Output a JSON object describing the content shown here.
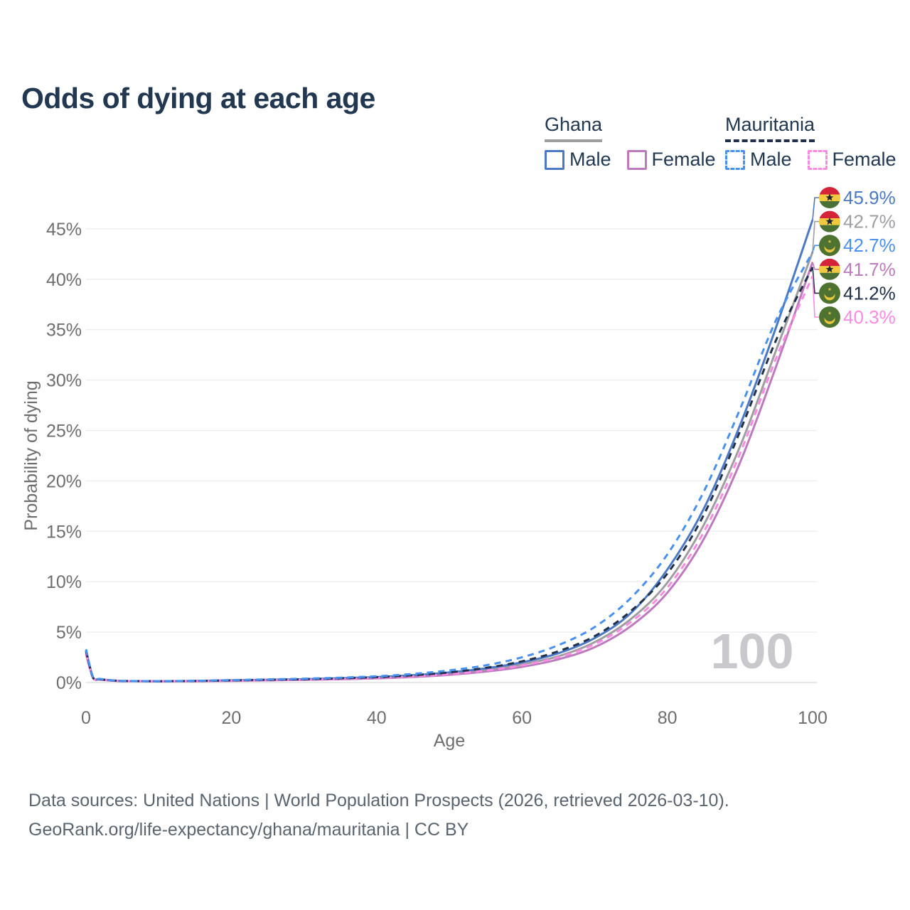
{
  "title": "Odds of dying at each age",
  "legend": {
    "groups": [
      {
        "country": "Ghana",
        "line_style": "solid",
        "underline_color": "#9e9e9e",
        "items": [
          {
            "label": "Male",
            "color": "#4c79c4",
            "dashed": false
          },
          {
            "label": "Female",
            "color": "#bd7abf",
            "dashed": false
          }
        ]
      },
      {
        "country": "Mauritania",
        "line_style": "dashed",
        "underline_color": "#22304a",
        "items": [
          {
            "label": "Male",
            "color": "#4a90ee",
            "dashed": true
          },
          {
            "label": "Female",
            "color": "#fb8ae2",
            "dashed": true
          }
        ]
      }
    ]
  },
  "chart_data": {
    "type": "line",
    "title": "Odds of dying at each age",
    "xlabel": "Age",
    "ylabel": "Probability of dying",
    "x_ticks": [
      0,
      20,
      40,
      60,
      80,
      100
    ],
    "y_tick_labels": [
      "0%",
      "5%",
      "10%",
      "15%",
      "20%",
      "25%",
      "30%",
      "35%",
      "40%",
      "45%"
    ],
    "y_ticks_percent": [
      0,
      5,
      10,
      15,
      20,
      25,
      30,
      35,
      40,
      45
    ],
    "xlim": [
      0,
      100
    ],
    "ylim_percent": [
      0,
      47
    ],
    "grid": "horizontal",
    "legend_position": "top-right",
    "watermark": "100",
    "x": [
      0,
      1,
      2,
      5,
      10,
      15,
      20,
      25,
      30,
      35,
      40,
      45,
      50,
      55,
      60,
      65,
      70,
      75,
      80,
      85,
      90,
      95,
      100
    ],
    "series": [
      {
        "name": "Ghana Male",
        "country": "Ghana",
        "sex": "Male",
        "color": "#4c79c4",
        "dash": false,
        "label_row": 0,
        "end_label": "45.9%",
        "end_value": 45.9,
        "values": [
          3.2,
          0.45,
          0.32,
          0.15,
          0.12,
          0.16,
          0.22,
          0.27,
          0.33,
          0.42,
          0.54,
          0.72,
          1.0,
          1.4,
          2.0,
          2.9,
          4.4,
          6.9,
          11.2,
          17.2,
          25.5,
          35.3,
          45.9
        ]
      },
      {
        "name": "Ghana Overall",
        "country": "Ghana",
        "sex": "All",
        "color": "#9e9ea1",
        "dash": false,
        "label_row": 1,
        "end_label": "42.7%",
        "end_value": 42.7,
        "values": [
          3.0,
          0.42,
          0.3,
          0.14,
          0.11,
          0.14,
          0.19,
          0.24,
          0.29,
          0.37,
          0.47,
          0.63,
          0.88,
          1.25,
          1.8,
          2.6,
          4.0,
          6.3,
          9.9,
          15.6,
          23.4,
          33.0,
          42.7
        ]
      },
      {
        "name": "Mauritania Male",
        "country": "Mauritania",
        "sex": "Male",
        "color": "#4a90ee",
        "dash": true,
        "label_row": 2,
        "end_label": "42.7%",
        "end_value": 42.7,
        "values": [
          3.3,
          0.48,
          0.35,
          0.16,
          0.13,
          0.17,
          0.24,
          0.31,
          0.38,
          0.48,
          0.62,
          0.85,
          1.2,
          1.7,
          2.5,
          3.7,
          5.5,
          8.4,
          12.7,
          18.9,
          27.1,
          36.0,
          42.7
        ]
      },
      {
        "name": "Ghana Female",
        "country": "Ghana",
        "sex": "Female",
        "color": "#bd7abf",
        "dash": false,
        "label_row": 3,
        "end_label": "41.7%",
        "end_value": 41.7,
        "values": [
          2.8,
          0.4,
          0.28,
          0.13,
          0.1,
          0.12,
          0.16,
          0.21,
          0.26,
          0.32,
          0.41,
          0.55,
          0.76,
          1.08,
          1.55,
          2.3,
          3.5,
          5.6,
          8.9,
          14.2,
          21.8,
          31.4,
          41.7
        ]
      },
      {
        "name": "Mauritania Overall",
        "country": "Mauritania",
        "sex": "All",
        "color": "#22304a",
        "dash": true,
        "label_row": 4,
        "end_label": "41.2%",
        "end_value": 41.2,
        "values": [
          3.1,
          0.44,
          0.31,
          0.15,
          0.12,
          0.15,
          0.21,
          0.27,
          0.33,
          0.42,
          0.53,
          0.72,
          1.0,
          1.45,
          2.1,
          3.1,
          4.6,
          7.1,
          10.8,
          16.6,
          24.9,
          34.0,
          41.2
        ]
      },
      {
        "name": "Mauritania Female",
        "country": "Mauritania",
        "sex": "Female",
        "color": "#fb8ae2",
        "dash": true,
        "label_row": 5,
        "end_label": "40.3%",
        "end_value": 40.3,
        "values": [
          2.9,
          0.41,
          0.29,
          0.14,
          0.11,
          0.13,
          0.18,
          0.23,
          0.28,
          0.35,
          0.45,
          0.6,
          0.83,
          1.18,
          1.7,
          2.5,
          3.8,
          6.0,
          9.4,
          14.9,
          22.7,
          32.2,
          40.3
        ]
      }
    ],
    "colors": {
      "grid": "#eaecef",
      "zero_line": "#d9dbde",
      "tick_text": "#6e6e6e",
      "watermark": "#c9c9cd",
      "ghana_flag": {
        "red": "#d5233a",
        "gold": "#f0c93f",
        "green": "#4a7034",
        "star": "#1c2430"
      },
      "mauritania_flag": {
        "green": "#4e7331",
        "gold": "#e8c53f"
      }
    }
  },
  "footer": {
    "line1": "Data sources: United Nations | World Population Prospects (2026, retrieved 2026-03-10).",
    "line2": "GeoRank.org/life-expectancy/ghana/mauritania | CC BY"
  }
}
